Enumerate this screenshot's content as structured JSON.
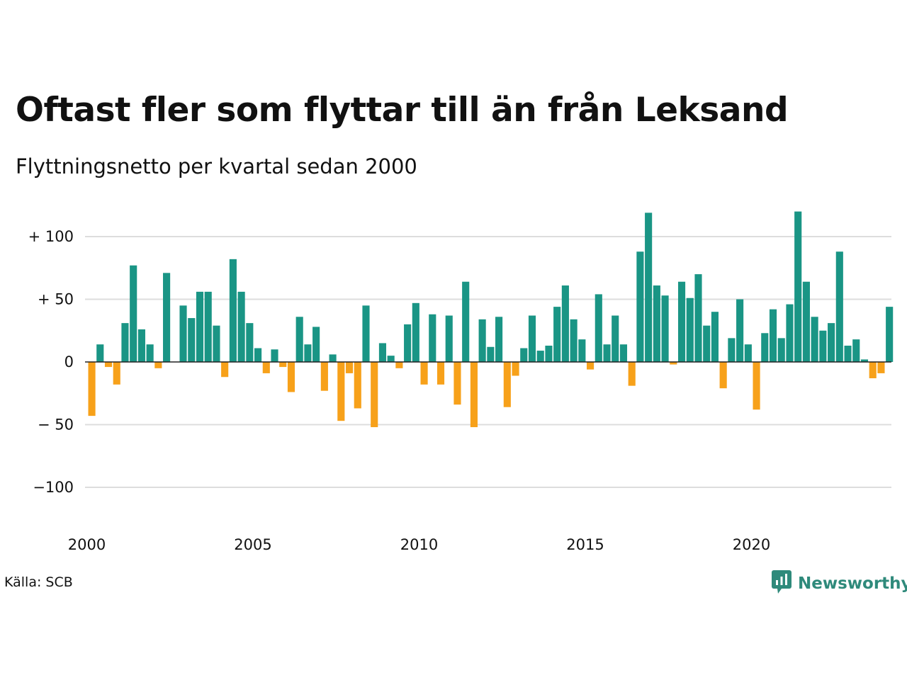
{
  "title": "Oftast fler som flyttar till än från Leksand",
  "subtitle": "Flyttningsnetto per kvartal sedan 2000",
  "source": "Källa: SCB",
  "brand": {
    "name": "Newsworthy",
    "icon": "newsworthy-logo-icon"
  },
  "colors": {
    "positive": "#1a9585",
    "negative": "#f7a11a",
    "grid": "#dddddd",
    "zero": "#222222"
  },
  "chart_data": {
    "type": "bar",
    "title": "Oftast fler som flyttar till än från Leksand",
    "subtitle": "Flyttningsnetto per kvartal sedan 2000",
    "xlabel": "",
    "ylabel": "",
    "x_start": "2000Q1",
    "period": "quarter",
    "ylim": [
      -125,
      125
    ],
    "y_ticks": [
      100,
      50,
      0,
      -50,
      -100
    ],
    "y_tick_labels": [
      "+ 100",
      "+  50",
      "0",
      "− 50",
      "−100"
    ],
    "x_ticks": [
      2000,
      2005,
      2010,
      2015,
      2020
    ],
    "x_tick_labels": [
      "2000",
      "2005",
      "2010",
      "2015",
      "2020"
    ],
    "grid": true,
    "legend": "none",
    "values": [
      -43,
      14,
      -4,
      -18,
      31,
      77,
      26,
      14,
      -5,
      71,
      0,
      45,
      35,
      56,
      56,
      29,
      -12,
      82,
      56,
      31,
      11,
      -9,
      10,
      -4,
      -24,
      36,
      14,
      28,
      -23,
      6,
      -47,
      -9,
      -37,
      45,
      -52,
      15,
      5,
      -5,
      30,
      47,
      -18,
      38,
      -18,
      37,
      -34,
      64,
      -52,
      34,
      12,
      36,
      -36,
      -11,
      11,
      37,
      9,
      13,
      44,
      61,
      34,
      18,
      -6,
      54,
      14,
      37,
      14,
      -19,
      88,
      119,
      61,
      53,
      -2,
      64,
      51,
      70,
      29,
      40,
      -21,
      19,
      50,
      14,
      -38,
      23,
      42,
      19,
      46,
      120,
      64,
      36,
      25,
      31,
      88,
      13,
      18,
      2,
      -13,
      -9,
      44
    ]
  }
}
